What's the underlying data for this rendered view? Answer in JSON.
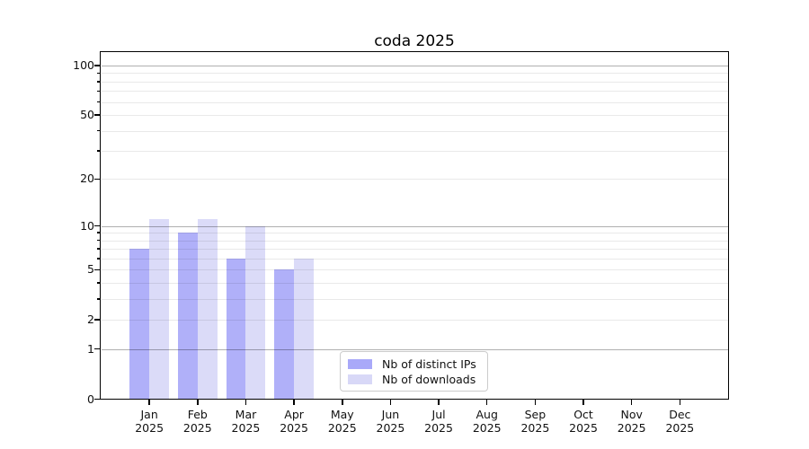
{
  "title": "coda 2025",
  "chart_data": {
    "type": "bar",
    "categories": [
      "Jan 2025",
      "Feb 2025",
      "Mar 2025",
      "Apr 2025",
      "May 2025",
      "Jun 2025",
      "Jul 2025",
      "Aug 2025",
      "Sep 2025",
      "Oct 2025",
      "Nov 2025",
      "Dec 2025"
    ],
    "series": [
      {
        "name": "Nb of distinct IPs",
        "color": "#a9a9f9",
        "values": [
          7,
          9,
          6,
          5,
          0,
          0,
          0,
          0,
          0,
          0,
          0,
          0
        ]
      },
      {
        "name": "Nb of downloads",
        "color": "#d8d8f7",
        "values": [
          11,
          11,
          10,
          6,
          0,
          0,
          0,
          0,
          0,
          0,
          0,
          0
        ]
      }
    ],
    "title": "coda 2025",
    "xlabel": "",
    "ylabel": "",
    "yscale": "log1p",
    "ylim": [
      0,
      120
    ],
    "y_tick_labels": [
      0,
      1,
      2,
      5,
      10,
      20,
      50,
      100
    ],
    "y_major_gridlines": [
      1,
      10,
      100
    ],
    "y_minor_gridlines": [
      2,
      3,
      4,
      5,
      6,
      7,
      8,
      9,
      20,
      30,
      40,
      50,
      60,
      70,
      80,
      90
    ],
    "grid": "horizontal",
    "legend_position": "lower-center-inside"
  },
  "x_axis": {
    "months": [
      "Jan",
      "Feb",
      "Mar",
      "Apr",
      "May",
      "Jun",
      "Jul",
      "Aug",
      "Sep",
      "Oct",
      "Nov",
      "Dec"
    ],
    "year": "2025"
  },
  "legend": {
    "items": [
      {
        "label": "Nb of distinct IPs",
        "color": "#a9a9f9"
      },
      {
        "label": "Nb of downloads",
        "color": "#d8d8f7"
      }
    ]
  },
  "colors": {
    "bar_distinct_ips": "#a9a9f9",
    "bar_downloads": "#d8d8f7",
    "grid_major": "#b0b0b0",
    "grid_minor": "#e8e8e8",
    "spine": "#000000",
    "text": "#111111",
    "legend_border": "#cccccc"
  }
}
